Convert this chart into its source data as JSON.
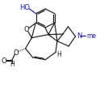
{
  "bg": "#ffffff",
  "lc": "#1a1a1a",
  "bc": "#1a1aaa",
  "lw": 0.85,
  "figsize": [
    1.29,
    1.21
  ],
  "dpi": 100,
  "xlim": [
    0,
    10
  ],
  "ylim": [
    0,
    10.5
  ]
}
